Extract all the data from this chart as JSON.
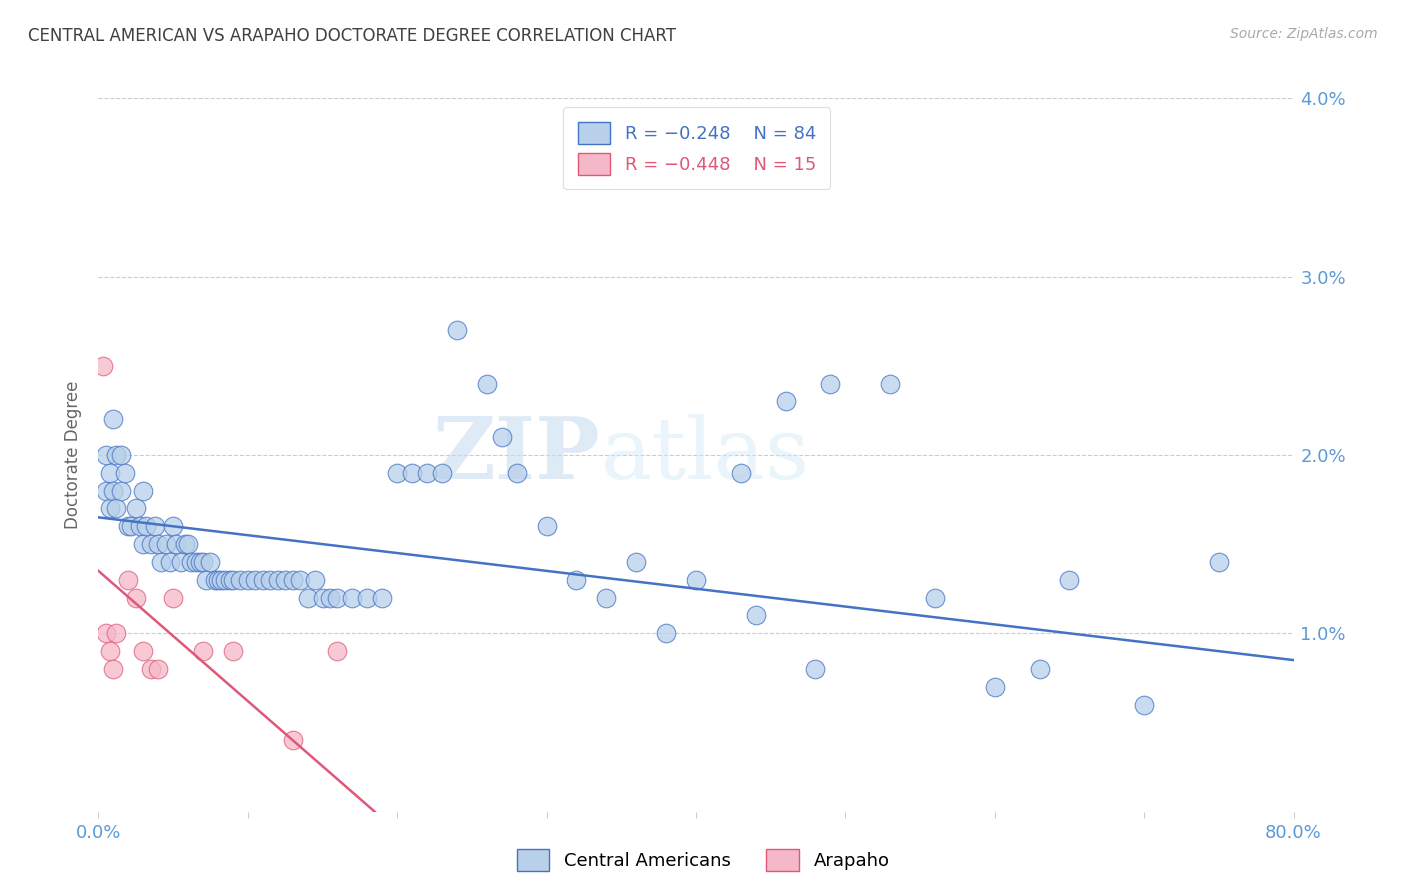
{
  "title": "CENTRAL AMERICAN VS ARAPAHO DOCTORATE DEGREE CORRELATION CHART",
  "source": "Source: ZipAtlas.com",
  "ylabel": "Doctorate Degree",
  "xlim": [
    0.0,
    0.8
  ],
  "ylim": [
    0.0,
    0.04
  ],
  "yticks": [
    0.0,
    0.01,
    0.02,
    0.03,
    0.04
  ],
  "ytick_labels": [
    "",
    "1.0%",
    "2.0%",
    "3.0%",
    "4.0%"
  ],
  "xticks": [
    0.0,
    0.1,
    0.2,
    0.3,
    0.4,
    0.5,
    0.6,
    0.7,
    0.8
  ],
  "xtick_labels": [
    "0.0%",
    "",
    "",
    "",
    "",
    "",
    "",
    "",
    "80.0%"
  ],
  "legend_blue_r": "R = −0.248",
  "legend_blue_n": "N = 84",
  "legend_pink_r": "R = −0.448",
  "legend_pink_n": "N = 15",
  "blue_color": "#b8d0ea",
  "pink_color": "#f5b8c8",
  "blue_line_color": "#4472c4",
  "pink_line_color": "#e05878",
  "title_color": "#404040",
  "axis_color": "#5b9bd5",
  "watermark_zip": "ZIP",
  "watermark_atlas": "atlas",
  "blue_scatter_x": [
    0.005,
    0.005,
    0.008,
    0.008,
    0.01,
    0.01,
    0.012,
    0.012,
    0.015,
    0.015,
    0.018,
    0.02,
    0.022,
    0.025,
    0.028,
    0.03,
    0.03,
    0.032,
    0.035,
    0.038,
    0.04,
    0.042,
    0.045,
    0.048,
    0.05,
    0.052,
    0.055,
    0.058,
    0.06,
    0.062,
    0.065,
    0.068,
    0.07,
    0.072,
    0.075,
    0.078,
    0.08,
    0.082,
    0.085,
    0.088,
    0.09,
    0.095,
    0.1,
    0.105,
    0.11,
    0.115,
    0.12,
    0.125,
    0.13,
    0.135,
    0.14,
    0.145,
    0.15,
    0.155,
    0.16,
    0.17,
    0.18,
    0.19,
    0.2,
    0.21,
    0.22,
    0.23,
    0.24,
    0.26,
    0.27,
    0.28,
    0.3,
    0.32,
    0.34,
    0.36,
    0.38,
    0.4,
    0.43,
    0.46,
    0.49,
    0.53,
    0.6,
    0.65,
    0.7,
    0.75,
    0.63,
    0.56,
    0.48,
    0.44
  ],
  "blue_scatter_y": [
    0.02,
    0.018,
    0.019,
    0.017,
    0.022,
    0.018,
    0.02,
    0.017,
    0.02,
    0.018,
    0.019,
    0.016,
    0.016,
    0.017,
    0.016,
    0.015,
    0.018,
    0.016,
    0.015,
    0.016,
    0.015,
    0.014,
    0.015,
    0.014,
    0.016,
    0.015,
    0.014,
    0.015,
    0.015,
    0.014,
    0.014,
    0.014,
    0.014,
    0.013,
    0.014,
    0.013,
    0.013,
    0.013,
    0.013,
    0.013,
    0.013,
    0.013,
    0.013,
    0.013,
    0.013,
    0.013,
    0.013,
    0.013,
    0.013,
    0.013,
    0.012,
    0.013,
    0.012,
    0.012,
    0.012,
    0.012,
    0.012,
    0.012,
    0.019,
    0.019,
    0.019,
    0.019,
    0.027,
    0.024,
    0.021,
    0.019,
    0.016,
    0.013,
    0.012,
    0.014,
    0.01,
    0.013,
    0.019,
    0.023,
    0.024,
    0.024,
    0.007,
    0.013,
    0.006,
    0.014,
    0.008,
    0.012,
    0.008,
    0.011
  ],
  "pink_scatter_x": [
    0.003,
    0.005,
    0.008,
    0.01,
    0.012,
    0.02,
    0.025,
    0.03,
    0.035,
    0.04,
    0.05,
    0.07,
    0.09,
    0.13,
    0.16
  ],
  "pink_scatter_y": [
    0.025,
    0.01,
    0.009,
    0.008,
    0.01,
    0.013,
    0.012,
    0.009,
    0.008,
    0.008,
    0.012,
    0.009,
    0.009,
    0.004,
    0.009
  ],
  "blue_line_x0": 0.0,
  "blue_line_y0": 0.0165,
  "blue_line_x1": 0.8,
  "blue_line_y1": 0.0085,
  "pink_line_x0": 0.0,
  "pink_line_y0": 0.0135,
  "pink_line_x1": 0.185,
  "pink_line_y1": 0.0
}
